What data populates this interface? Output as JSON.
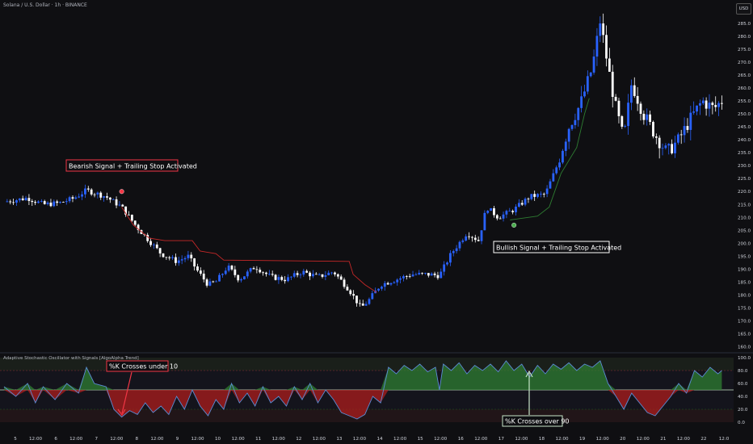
{
  "header": {
    "symbol_title": "Solana / U.S. Dollar · 1h · BINANCE",
    "currency_button": "USD"
  },
  "oscillator": {
    "title": "Adaptive Stochastic Oscillator with Signals [AlgoAlpha Trend]"
  },
  "annotations": {
    "bearish": "Bearish Signal + Trailing Stop Activated",
    "bullish": "Bullish Signal + Trailing Stop Activated",
    "k_under": "%K Crosses under 10",
    "k_over": "%K Crosses over 90"
  },
  "colors": {
    "background": "#0f0f12",
    "bull_candle": "#2962ff",
    "bear_candle": "#ffffff",
    "bear_signal": "#f23645",
    "bull_signal": "#4caf50",
    "stop_red": "#c62828",
    "stop_green": "#2e7d32",
    "osc_line": "#5b8bd4"
  },
  "chart_data": {
    "type": "candlestick",
    "title": "Solana / U.S. Dollar · 1h · BINANCE",
    "y_axis": {
      "ticks": [
        "160.0",
        "165.0",
        "170.0",
        "175.0",
        "180.0",
        "185.0",
        "190.0",
        "195.0",
        "200.0",
        "205.0",
        "210.0",
        "215.0",
        "220.0",
        "225.0",
        "230.0",
        "235.0",
        "240.0",
        "245.0",
        "250.0",
        "255.0",
        "260.0",
        "265.0",
        "270.0",
        "275.0",
        "280.0",
        "285.0"
      ],
      "range": [
        158,
        294
      ]
    },
    "x_axis": {
      "ticks": [
        "5",
        "12:00",
        "6",
        "12:00",
        "7",
        "12:00",
        "8",
        "12:00",
        "9",
        "12:00",
        "10",
        "12:00",
        "11",
        "12:00",
        "12",
        "12:00",
        "13",
        "12:00",
        "14",
        "12:00",
        "15",
        "12:00",
        "16",
        "12:00",
        "17",
        "12:00",
        "18",
        "12:00",
        "19",
        "12:00",
        "20",
        "12:00",
        "21",
        "12:00",
        "22",
        "12:0"
      ]
    },
    "price_path": [
      {
        "x": 0,
        "y": 216
      },
      {
        "x": 3,
        "y": 217.5
      },
      {
        "x": 5,
        "y": 215
      },
      {
        "x": 7,
        "y": 215.5
      },
      {
        "x": 9,
        "y": 217.5
      },
      {
        "x": 10.5,
        "y": 220.5
      },
      {
        "x": 13,
        "y": 218
      },
      {
        "x": 15,
        "y": 214
      },
      {
        "x": 17,
        "y": 206
      },
      {
        "x": 18.5,
        "y": 201
      },
      {
        "x": 20,
        "y": 196
      },
      {
        "x": 22,
        "y": 193
      },
      {
        "x": 23.5,
        "y": 195
      },
      {
        "x": 24.5,
        "y": 190
      },
      {
        "x": 26,
        "y": 184
      },
      {
        "x": 27,
        "y": 185
      },
      {
        "x": 28.5,
        "y": 191
      },
      {
        "x": 30,
        "y": 186
      },
      {
        "x": 32,
        "y": 191
      },
      {
        "x": 34,
        "y": 187
      },
      {
        "x": 36,
        "y": 186
      },
      {
        "x": 38,
        "y": 189
      },
      {
        "x": 40,
        "y": 187
      },
      {
        "x": 42,
        "y": 189
      },
      {
        "x": 44,
        "y": 182
      },
      {
        "x": 45.5,
        "y": 175
      },
      {
        "x": 46.5,
        "y": 178
      },
      {
        "x": 48,
        "y": 184
      },
      {
        "x": 50,
        "y": 186
      },
      {
        "x": 52,
        "y": 188
      },
      {
        "x": 54,
        "y": 188
      },
      {
        "x": 55.5,
        "y": 187.5
      },
      {
        "x": 57,
        "y": 196
      },
      {
        "x": 59,
        "y": 204
      },
      {
        "x": 60.5,
        "y": 201
      },
      {
        "x": 61.5,
        "y": 214
      },
      {
        "x": 63,
        "y": 210
      },
      {
        "x": 65,
        "y": 213
      },
      {
        "x": 67,
        "y": 218
      },
      {
        "x": 69,
        "y": 219
      },
      {
        "x": 70.5,
        "y": 230
      },
      {
        "x": 72,
        "y": 245
      },
      {
        "x": 73.5,
        "y": 254
      },
      {
        "x": 75,
        "y": 268
      },
      {
        "x": 76,
        "y": 286
      },
      {
        "x": 77,
        "y": 268
      },
      {
        "x": 78,
        "y": 252
      },
      {
        "x": 79,
        "y": 240
      },
      {
        "x": 80,
        "y": 262
      },
      {
        "x": 81.5,
        "y": 250
      },
      {
        "x": 83,
        "y": 242
      },
      {
        "x": 84.5,
        "y": 235
      },
      {
        "x": 86,
        "y": 240
      },
      {
        "x": 87.5,
        "y": 248
      },
      {
        "x": 89,
        "y": 255
      },
      {
        "x": 90.5,
        "y": 252
      },
      {
        "x": 91.5,
        "y": 255
      }
    ],
    "trailing_stop_bearish": [
      {
        "x": 15,
        "y": 214
      },
      {
        "x": 16.5,
        "y": 207
      },
      {
        "x": 18.5,
        "y": 202
      },
      {
        "x": 20.5,
        "y": 201
      },
      {
        "x": 24,
        "y": 201
      },
      {
        "x": 25,
        "y": 197
      },
      {
        "x": 27,
        "y": 196
      },
      {
        "x": 28,
        "y": 193.5
      },
      {
        "x": 44,
        "y": 193
      },
      {
        "x": 44.5,
        "y": 188
      },
      {
        "x": 46,
        "y": 184
      },
      {
        "x": 47.5,
        "y": 181
      }
    ],
    "trailing_stop_bullish": [
      {
        "x": 64.5,
        "y": 209
      },
      {
        "x": 68,
        "y": 210.5
      },
      {
        "x": 69.5,
        "y": 214
      },
      {
        "x": 71,
        "y": 227
      },
      {
        "x": 73,
        "y": 237
      },
      {
        "x": 74,
        "y": 250
      },
      {
        "x": 74.6,
        "y": 256
      }
    ],
    "signals": [
      {
        "type": "bearish",
        "x": 15,
        "y": 220
      },
      {
        "type": "bullish",
        "x": 65,
        "y": 207
      }
    ],
    "oscillator": {
      "y_axis": {
        "ticks": [
          "0.0",
          "20.0",
          "40.0",
          "60.0",
          "80.0",
          "100.0"
        ],
        "range": [
          0,
          100
        ]
      },
      "levels": [
        80,
        50,
        20
      ],
      "k_path": [
        {
          "x": 0,
          "y": 55
        },
        {
          "x": 1.5,
          "y": 40
        },
        {
          "x": 3,
          "y": 60
        },
        {
          "x": 4,
          "y": 30
        },
        {
          "x": 5,
          "y": 55
        },
        {
          "x": 6.5,
          "y": 35
        },
        {
          "x": 8,
          "y": 60
        },
        {
          "x": 9.5,
          "y": 45
        },
        {
          "x": 10.5,
          "y": 85
        },
        {
          "x": 11.5,
          "y": 60
        },
        {
          "x": 13,
          "y": 55
        },
        {
          "x": 14,
          "y": 20
        },
        {
          "x": 15,
          "y": 8
        },
        {
          "x": 16,
          "y": 18
        },
        {
          "x": 17,
          "y": 12
        },
        {
          "x": 18,
          "y": 30
        },
        {
          "x": 19,
          "y": 15
        },
        {
          "x": 20,
          "y": 25
        },
        {
          "x": 21,
          "y": 12
        },
        {
          "x": 22,
          "y": 40
        },
        {
          "x": 23,
          "y": 20
        },
        {
          "x": 24,
          "y": 50
        },
        {
          "x": 25,
          "y": 25
        },
        {
          "x": 26,
          "y": 10
        },
        {
          "x": 27,
          "y": 35
        },
        {
          "x": 28,
          "y": 20
        },
        {
          "x": 29,
          "y": 60
        },
        {
          "x": 30,
          "y": 30
        },
        {
          "x": 31,
          "y": 45
        },
        {
          "x": 32,
          "y": 25
        },
        {
          "x": 33,
          "y": 55
        },
        {
          "x": 34,
          "y": 30
        },
        {
          "x": 35,
          "y": 40
        },
        {
          "x": 36,
          "y": 25
        },
        {
          "x": 37,
          "y": 55
        },
        {
          "x": 38,
          "y": 35
        },
        {
          "x": 39,
          "y": 60
        },
        {
          "x": 40,
          "y": 30
        },
        {
          "x": 41,
          "y": 50
        },
        {
          "x": 42,
          "y": 35
        },
        {
          "x": 43,
          "y": 15
        },
        {
          "x": 44,
          "y": 10
        },
        {
          "x": 45,
          "y": 5
        },
        {
          "x": 46,
          "y": 12
        },
        {
          "x": 47,
          "y": 40
        },
        {
          "x": 48,
          "y": 30
        },
        {
          "x": 49,
          "y": 85
        },
        {
          "x": 50,
          "y": 75
        },
        {
          "x": 51,
          "y": 88
        },
        {
          "x": 52,
          "y": 80
        },
        {
          "x": 53,
          "y": 90
        },
        {
          "x": 54,
          "y": 78
        },
        {
          "x": 55,
          "y": 85
        },
        {
          "x": 55.5,
          "y": 50
        },
        {
          "x": 56,
          "y": 90
        },
        {
          "x": 57,
          "y": 80
        },
        {
          "x": 58,
          "y": 92
        },
        {
          "x": 59,
          "y": 75
        },
        {
          "x": 60,
          "y": 88
        },
        {
          "x": 61,
          "y": 80
        },
        {
          "x": 62,
          "y": 90
        },
        {
          "x": 63,
          "y": 78
        },
        {
          "x": 64,
          "y": 95
        },
        {
          "x": 65,
          "y": 80
        },
        {
          "x": 66,
          "y": 90
        },
        {
          "x": 67,
          "y": 70
        },
        {
          "x": 68,
          "y": 88
        },
        {
          "x": 69,
          "y": 75
        },
        {
          "x": 70,
          "y": 90
        },
        {
          "x": 71,
          "y": 82
        },
        {
          "x": 72,
          "y": 92
        },
        {
          "x": 73,
          "y": 80
        },
        {
          "x": 74,
          "y": 90
        },
        {
          "x": 75,
          "y": 85
        },
        {
          "x": 76,
          "y": 95
        },
        {
          "x": 77,
          "y": 60
        },
        {
          "x": 78,
          "y": 40
        },
        {
          "x": 79,
          "y": 20
        },
        {
          "x": 80,
          "y": 45
        },
        {
          "x": 81,
          "y": 30
        },
        {
          "x": 82,
          "y": 15
        },
        {
          "x": 83,
          "y": 10
        },
        {
          "x": 84,
          "y": 25
        },
        {
          "x": 85,
          "y": 40
        },
        {
          "x": 86,
          "y": 60
        },
        {
          "x": 87,
          "y": 45
        },
        {
          "x": 88,
          "y": 80
        },
        {
          "x": 89,
          "y": 70
        },
        {
          "x": 90,
          "y": 85
        },
        {
          "x": 91,
          "y": 75
        },
        {
          "x": 91.5,
          "y": 80
        }
      ]
    },
    "grid": false,
    "legend": "none"
  }
}
